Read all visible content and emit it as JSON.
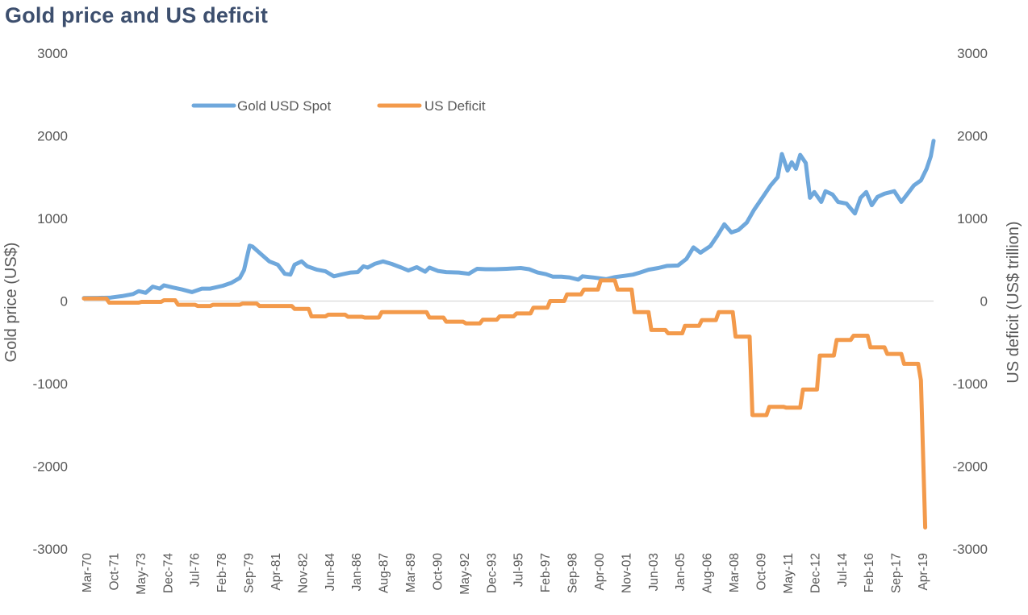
{
  "chart_data": {
    "type": "line",
    "title": "Gold price and US deficit",
    "ylabel": "Gold price (US$)",
    "y2label": "US deficit (US$ trillion)",
    "ylim": [
      -3000,
      3000
    ],
    "y2lim": [
      -3000,
      3000
    ],
    "yticks": [
      "3000",
      "2000",
      "1000",
      "0",
      "-1000",
      "-2000",
      "-3000"
    ],
    "y2ticks": [
      "3000",
      "2000",
      "1000",
      "0",
      "-1000",
      "-2000",
      "-3000"
    ],
    "xticks": [
      "Mar-70",
      "Oct-71",
      "May-73",
      "Dec-74",
      "Jul-76",
      "Feb-78",
      "Sep-79",
      "Apr-81",
      "Nov-82",
      "Jun-84",
      "Jan-86",
      "Aug-87",
      "Mar-89",
      "Oct-90",
      "May-92",
      "Dec-93",
      "Jul-95",
      "Feb-97",
      "Sep-98",
      "Apr-00",
      "Nov-01",
      "Jun-03",
      "Jan-05",
      "Aug-06",
      "Mar-08",
      "Oct-09",
      "May-11",
      "Dec-12",
      "Jul-14",
      "Feb-16",
      "Sep-17",
      "Apr-19"
    ],
    "xrange": [
      "1970-03",
      "2020-08"
    ],
    "grid": false,
    "legend_position": "top-left",
    "series": [
      {
        "name": "Gold USD Spot",
        "color": "#6fa8dc",
        "axis": "left",
        "points": [
          [
            "1970-03",
            36
          ],
          [
            "1971-01",
            38
          ],
          [
            "1971-10",
            42
          ],
          [
            "1972-06",
            60
          ],
          [
            "1973-02",
            85
          ],
          [
            "1973-06",
            120
          ],
          [
            "1973-11",
            100
          ],
          [
            "1974-04",
            175
          ],
          [
            "1974-09",
            150
          ],
          [
            "1974-12",
            190
          ],
          [
            "1975-06",
            165
          ],
          [
            "1976-01",
            140
          ],
          [
            "1976-08",
            108
          ],
          [
            "1977-03",
            150
          ],
          [
            "1977-09",
            150
          ],
          [
            "1978-06",
            185
          ],
          [
            "1978-12",
            220
          ],
          [
            "1979-06",
            280
          ],
          [
            "1979-09",
            375
          ],
          [
            "1980-01",
            670
          ],
          [
            "1980-03",
            660
          ],
          [
            "1980-09",
            570
          ],
          [
            "1981-03",
            480
          ],
          [
            "1981-09",
            440
          ],
          [
            "1982-02",
            330
          ],
          [
            "1982-06",
            320
          ],
          [
            "1982-09",
            440
          ],
          [
            "1983-02",
            480
          ],
          [
            "1983-06",
            420
          ],
          [
            "1984-01",
            380
          ],
          [
            "1984-07",
            360
          ],
          [
            "1985-01",
            300
          ],
          [
            "1985-06",
            320
          ],
          [
            "1986-01",
            345
          ],
          [
            "1986-06",
            350
          ],
          [
            "1986-10",
            420
          ],
          [
            "1987-01",
            405
          ],
          [
            "1987-06",
            450
          ],
          [
            "1987-12",
            480
          ],
          [
            "1988-06",
            450
          ],
          [
            "1989-01",
            405
          ],
          [
            "1989-06",
            370
          ],
          [
            "1989-12",
            410
          ],
          [
            "1990-06",
            355
          ],
          [
            "1990-09",
            405
          ],
          [
            "1991-03",
            365
          ],
          [
            "1991-09",
            350
          ],
          [
            "1992-06",
            345
          ],
          [
            "1993-01",
            330
          ],
          [
            "1993-07",
            390
          ],
          [
            "1994-01",
            385
          ],
          [
            "1994-08",
            385
          ],
          [
            "1995-04",
            390
          ],
          [
            "1996-02",
            400
          ],
          [
            "1996-08",
            385
          ],
          [
            "1997-02",
            345
          ],
          [
            "1997-08",
            325
          ],
          [
            "1998-01",
            295
          ],
          [
            "1998-07",
            295
          ],
          [
            "1999-01",
            285
          ],
          [
            "1999-07",
            260
          ],
          [
            "1999-10",
            300
          ],
          [
            "2000-06",
            285
          ],
          [
            "2001-03",
            265
          ],
          [
            "2001-09",
            290
          ],
          [
            "2002-04",
            305
          ],
          [
            "2002-10",
            320
          ],
          [
            "2003-03",
            345
          ],
          [
            "2003-09",
            380
          ],
          [
            "2004-04",
            400
          ],
          [
            "2004-10",
            425
          ],
          [
            "2005-06",
            430
          ],
          [
            "2005-12",
            510
          ],
          [
            "2006-05",
            650
          ],
          [
            "2006-10",
            585
          ],
          [
            "2007-05",
            665
          ],
          [
            "2007-10",
            790
          ],
          [
            "2008-03",
            930
          ],
          [
            "2008-08",
            830
          ],
          [
            "2009-01",
            860
          ],
          [
            "2009-07",
            950
          ],
          [
            "2009-12",
            1100
          ],
          [
            "2010-06",
            1250
          ],
          [
            "2010-12",
            1400
          ],
          [
            "2011-05",
            1500
          ],
          [
            "2011-08",
            1780
          ],
          [
            "2011-12",
            1580
          ],
          [
            "2012-03",
            1680
          ],
          [
            "2012-06",
            1600
          ],
          [
            "2012-09",
            1770
          ],
          [
            "2013-01",
            1670
          ],
          [
            "2013-04",
            1250
          ],
          [
            "2013-07",
            1320
          ],
          [
            "2013-12",
            1200
          ],
          [
            "2014-03",
            1330
          ],
          [
            "2014-08",
            1290
          ],
          [
            "2014-12",
            1200
          ],
          [
            "2015-06",
            1180
          ],
          [
            "2015-12",
            1060
          ],
          [
            "2016-04",
            1250
          ],
          [
            "2016-08",
            1320
          ],
          [
            "2016-12",
            1160
          ],
          [
            "2017-04",
            1260
          ],
          [
            "2017-09",
            1300
          ],
          [
            "2018-04",
            1330
          ],
          [
            "2018-09",
            1200
          ],
          [
            "2019-02",
            1310
          ],
          [
            "2019-06",
            1400
          ],
          [
            "2019-11",
            1460
          ],
          [
            "2020-03",
            1600
          ],
          [
            "2020-06",
            1750
          ],
          [
            "2020-08",
            1940
          ]
        ]
      },
      {
        "name": "US Deficit",
        "color": "#f39a4b",
        "axis": "right",
        "points": [
          [
            "1970-03",
            30
          ],
          [
            "1971-07",
            30
          ],
          [
            "1971-09",
            -20
          ],
          [
            "1973-06",
            -20
          ],
          [
            "1973-08",
            -10
          ],
          [
            "1974-10",
            -10
          ],
          [
            "1974-12",
            10
          ],
          [
            "1975-08",
            10
          ],
          [
            "1975-10",
            -45
          ],
          [
            "1976-10",
            -45
          ],
          [
            "1976-12",
            -60
          ],
          [
            "1977-09",
            -60
          ],
          [
            "1977-11",
            -45
          ],
          [
            "1979-06",
            -45
          ],
          [
            "1979-08",
            -30
          ],
          [
            "1980-06",
            -30
          ],
          [
            "1980-08",
            -60
          ],
          [
            "1982-07",
            -60
          ],
          [
            "1982-09",
            -95
          ],
          [
            "1983-07",
            -95
          ],
          [
            "1983-09",
            -185
          ],
          [
            "1984-07",
            -185
          ],
          [
            "1984-09",
            -165
          ],
          [
            "1985-09",
            -165
          ],
          [
            "1985-11",
            -190
          ],
          [
            "1986-09",
            -190
          ],
          [
            "1986-11",
            -200
          ],
          [
            "1987-09",
            -200
          ],
          [
            "1987-11",
            -135
          ],
          [
            "1990-07",
            -135
          ],
          [
            "1990-09",
            -200
          ],
          [
            "1991-07",
            -200
          ],
          [
            "1991-09",
            -250
          ],
          [
            "1992-09",
            -250
          ],
          [
            "1992-11",
            -270
          ],
          [
            "1993-09",
            -270
          ],
          [
            "1993-11",
            -225
          ],
          [
            "1994-09",
            -225
          ],
          [
            "1994-11",
            -185
          ],
          [
            "1995-09",
            -185
          ],
          [
            "1995-11",
            -150
          ],
          [
            "1996-09",
            -150
          ],
          [
            "1996-11",
            -80
          ],
          [
            "1997-09",
            -80
          ],
          [
            "1997-11",
            0
          ],
          [
            "1998-09",
            0
          ],
          [
            "1998-11",
            80
          ],
          [
            "1999-09",
            80
          ],
          [
            "1999-11",
            140
          ],
          [
            "2000-09",
            140
          ],
          [
            "2000-11",
            250
          ],
          [
            "2001-09",
            250
          ],
          [
            "2001-11",
            140
          ],
          [
            "2002-09",
            140
          ],
          [
            "2002-11",
            -135
          ],
          [
            "2003-09",
            -135
          ],
          [
            "2003-11",
            -350
          ],
          [
            "2004-09",
            -350
          ],
          [
            "2004-11",
            -390
          ],
          [
            "2005-09",
            -390
          ],
          [
            "2005-11",
            -300
          ],
          [
            "2006-09",
            -300
          ],
          [
            "2006-11",
            -230
          ],
          [
            "2007-09",
            -230
          ],
          [
            "2007-11",
            -135
          ],
          [
            "2008-09",
            -135
          ],
          [
            "2008-11",
            -430
          ],
          [
            "2009-09",
            -430
          ],
          [
            "2009-11",
            -1380
          ],
          [
            "2010-09",
            -1380
          ],
          [
            "2010-11",
            -1280
          ],
          [
            "2011-09",
            -1280
          ],
          [
            "2011-11",
            -1290
          ],
          [
            "2012-09",
            -1290
          ],
          [
            "2012-11",
            -1070
          ],
          [
            "2013-09",
            -1070
          ],
          [
            "2013-11",
            -660
          ],
          [
            "2014-09",
            -660
          ],
          [
            "2014-11",
            -470
          ],
          [
            "2015-09",
            -470
          ],
          [
            "2015-11",
            -420
          ],
          [
            "2016-09",
            -420
          ],
          [
            "2016-11",
            -560
          ],
          [
            "2017-09",
            -560
          ],
          [
            "2017-11",
            -640
          ],
          [
            "2018-09",
            -640
          ],
          [
            "2018-11",
            -760
          ],
          [
            "2019-09",
            -760
          ],
          [
            "2019-11",
            -960
          ],
          [
            "2020-02",
            -2740
          ]
        ]
      }
    ]
  }
}
